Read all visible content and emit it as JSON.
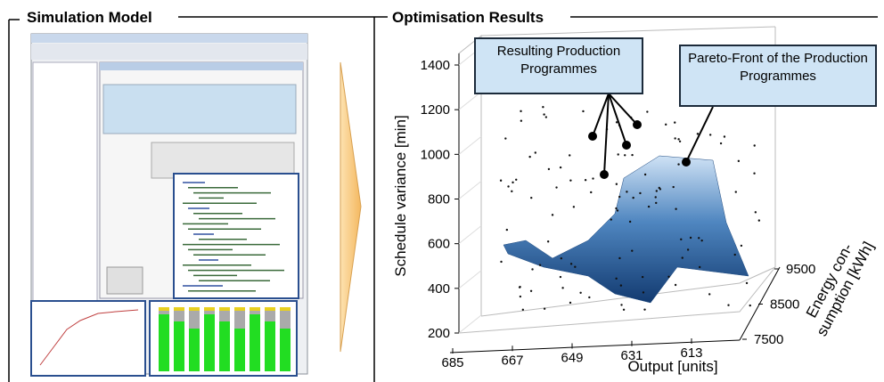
{
  "panels": {
    "left_title": "Simulation Model",
    "right_title": "Optimisation Results"
  },
  "chart_data": {
    "type": "surface3d",
    "ylabel": "Schedule variance [min]",
    "xlabel": "Output [units]",
    "zlabel": "Energy con-sumption [kWh]",
    "xlim": [
      685,
      613
    ],
    "xticks": [
      685,
      667,
      649,
      631,
      613
    ],
    "ylim": [
      200,
      1400
    ],
    "yticks": [
      200,
      400,
      600,
      800,
      1000,
      1200,
      1400
    ],
    "zlim": [
      7500,
      9500
    ],
    "zticks": [
      7500,
      8500,
      9500
    ],
    "annotations": [
      "Resulting Production Programmes",
      "Pareto-Front of the Production Programmes"
    ]
  }
}
